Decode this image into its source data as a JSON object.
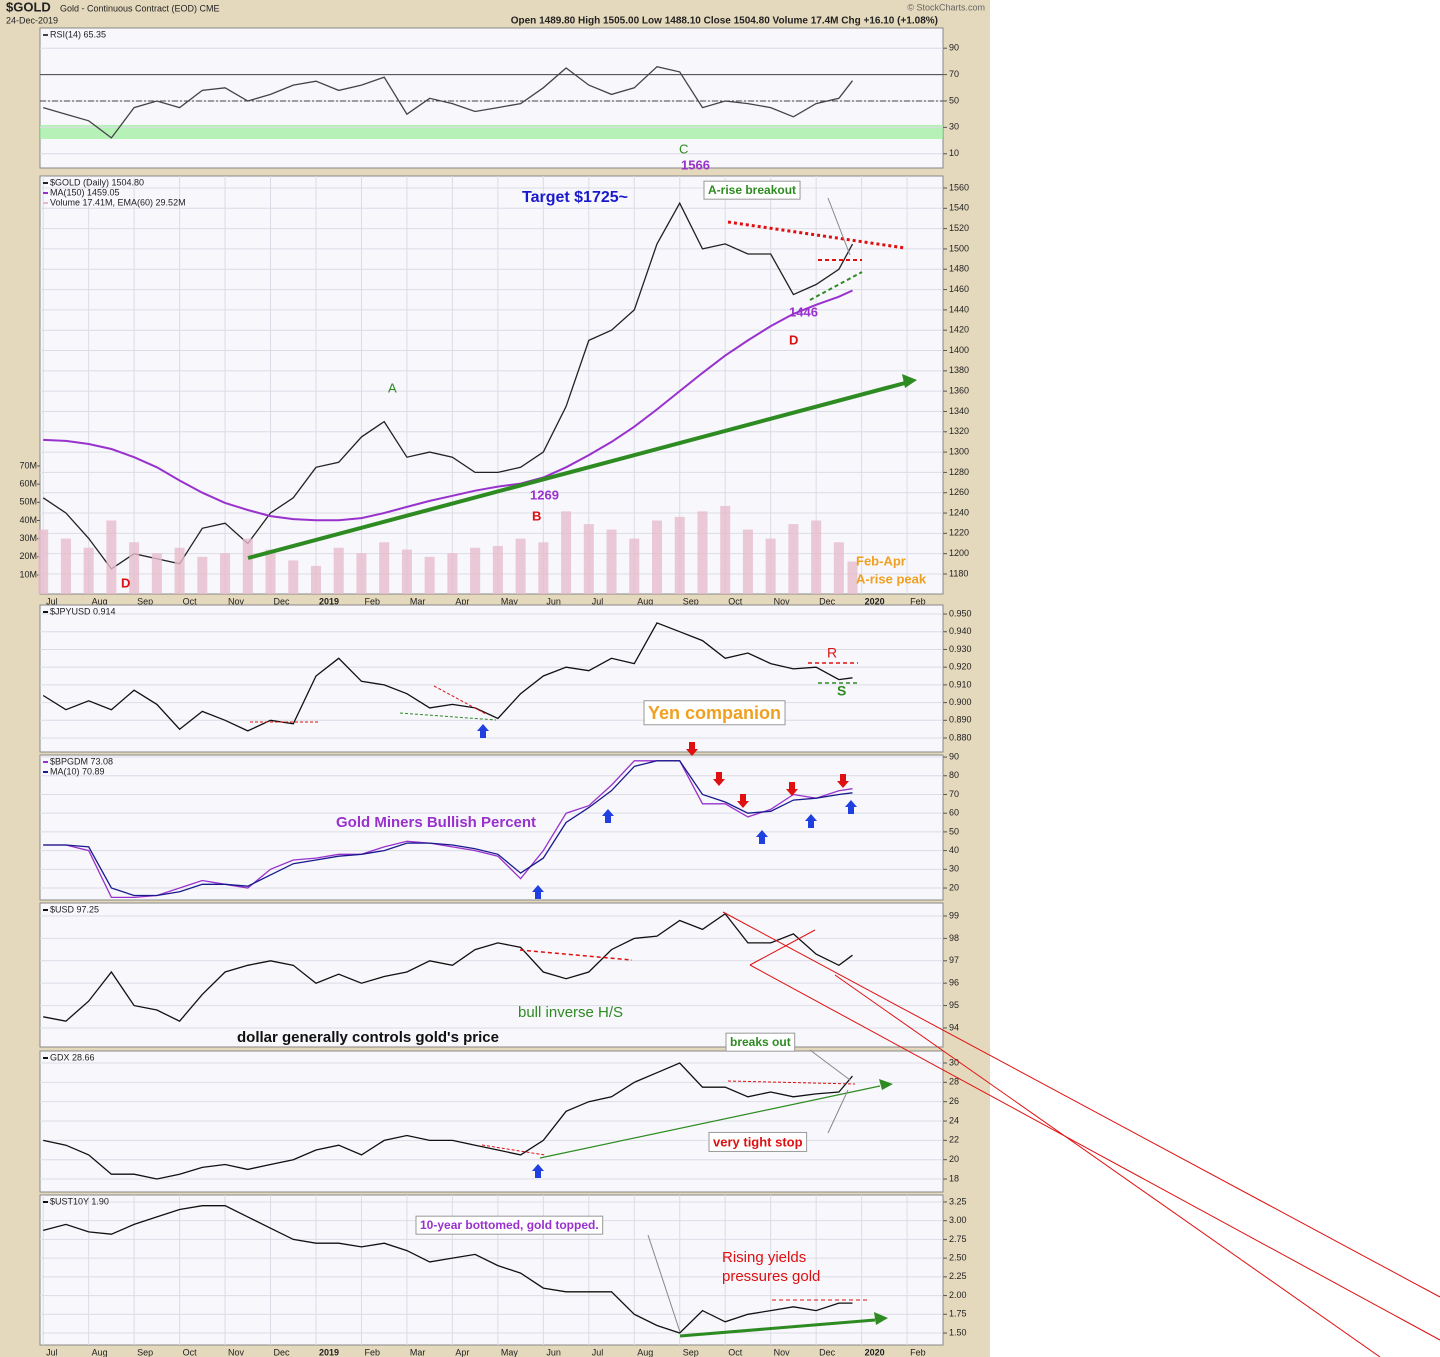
{
  "header": {
    "symbol": "$GOLD",
    "description": "Gold - Continuous Contract (EOD) CME",
    "date": "24-Dec-2019",
    "quote": "Open 1489.80  High 1505.00  Low 1488.10  Close 1504.80  Volume 17.4M  Chg +16.10 (+1.08%)",
    "credit": "© StockCharts.com"
  },
  "chart_data": [
    {
      "type": "line",
      "x": [
        0,
        0.5,
        1,
        1.5,
        2,
        2.5,
        3,
        3.5,
        4,
        4.5,
        5,
        5.5,
        6,
        6.5,
        7,
        7.5,
        8,
        8.5,
        9,
        9.5,
        10,
        10.5,
        11,
        11.5,
        12,
        12.5,
        13,
        13.5,
        14,
        14.5,
        15,
        15.5,
        16,
        16.5,
        17,
        17.5,
        17.8
      ],
      "xlim": [
        -0.07,
        19.79
      ],
      "ylim": [
        -0.8,
        105.3
      ],
      "yticks": [
        10,
        30,
        50,
        70,
        90
      ],
      "grid": true,
      "band": [
        21.2,
        31.8
      ],
      "ref_lines": [
        70,
        50
      ],
      "series": [
        {
          "name": "RSI(14) 65.35",
          "color": "#444444",
          "values": [
            45,
            40,
            35,
            22,
            45,
            50,
            45,
            58,
            60,
            50,
            55,
            62,
            65,
            58,
            62,
            68,
            40,
            52,
            48,
            42,
            45,
            48,
            60,
            75,
            62,
            55,
            60,
            76,
            72,
            45,
            50,
            48,
            45,
            38,
            48,
            52,
            65.35
          ]
        }
      ]
    },
    {
      "type": "line",
      "x": [
        0,
        0.5,
        1,
        1.5,
        2,
        2.5,
        3,
        3.5,
        4,
        4.5,
        5,
        5.5,
        6,
        6.5,
        7,
        7.5,
        8,
        8.5,
        9,
        9.5,
        10,
        10.5,
        11,
        11.5,
        12,
        12.5,
        13,
        13.5,
        14,
        14.5,
        15,
        15.5,
        16,
        16.5,
        17,
        17.5,
        17.8
      ],
      "xlim": [
        -0.07,
        19.79
      ],
      "ylim": [
        1160.3,
        1571.8
      ],
      "yticks": [
        1180,
        1200,
        1220,
        1240,
        1260,
        1280,
        1300,
        1320,
        1340,
        1360,
        1380,
        1400,
        1420,
        1440,
        1460,
        1480,
        1500,
        1520,
        1540,
        1560
      ],
      "y2lim": [
        -0.46,
        229.6
      ],
      "y2ticks": [
        {
          "value": 10,
          "label": "10M"
        },
        {
          "value": 20,
          "label": "20M"
        },
        {
          "value": 30,
          "label": "30M"
        },
        {
          "value": 40,
          "label": "40M"
        },
        {
          "value": 50,
          "label": "50M"
        },
        {
          "value": 60,
          "label": "60M"
        },
        {
          "value": 70,
          "label": "70M"
        }
      ],
      "xticks": [
        {
          "value": 0,
          "label": "Jul"
        },
        {
          "value": 1,
          "label": "Aug"
        },
        {
          "value": 2,
          "label": "Sep"
        },
        {
          "value": 3,
          "label": "Oct"
        },
        {
          "value": 4,
          "label": "Nov"
        },
        {
          "value": 5,
          "label": "Dec"
        },
        {
          "value": 6,
          "label": "2019"
        },
        {
          "value": 7,
          "label": "Feb"
        },
        {
          "value": 8,
          "label": "Mar"
        },
        {
          "value": 9,
          "label": "Apr"
        },
        {
          "value": 10,
          "label": "May"
        },
        {
          "value": 11,
          "label": "Jun"
        },
        {
          "value": 12,
          "label": "Jul"
        },
        {
          "value": 13,
          "label": "Aug"
        },
        {
          "value": 14,
          "label": "Sep"
        },
        {
          "value": 15,
          "label": "Oct"
        },
        {
          "value": 16,
          "label": "Nov"
        },
        {
          "value": 17,
          "label": "Dec"
        },
        {
          "value": 18,
          "label": "2020"
        },
        {
          "value": 19,
          "label": "Feb"
        }
      ],
      "grid": true,
      "series": [
        {
          "name": "$GOLD (Daily) 1504.80",
          "color": "#222222",
          "values": [
            1255,
            1240,
            1215,
            1185,
            1200,
            1195,
            1190,
            1225,
            1230,
            1210,
            1240,
            1255,
            1285,
            1290,
            1315,
            1330,
            1295,
            1300,
            1295,
            1280,
            1280,
            1285,
            1300,
            1345,
            1410,
            1420,
            1440,
            1505,
            1545,
            1500,
            1505,
            1495,
            1495,
            1455,
            1465,
            1480,
            1504.8
          ]
        },
        {
          "name": "MA(150) 1459.05",
          "color": "#9932cc",
          "values": [
            1312,
            1311,
            1308,
            1303,
            1295,
            1285,
            1272,
            1260,
            1250,
            1243,
            1237,
            1234,
            1233,
            1233,
            1235,
            1240,
            1246,
            1252,
            1257,
            1262,
            1266,
            1269,
            1275,
            1285,
            1297,
            1310,
            1325,
            1342,
            1360,
            1378,
            1395,
            1410,
            1424,
            1436,
            1445,
            1453,
            1459.05
          ]
        },
        {
          "name": "Volume 17.41M, EMA(60) 29.52M",
          "color": "#e6bccb",
          "axis": "y2",
          "values": [
            35,
            30,
            25,
            40,
            28,
            22,
            25,
            20,
            22,
            30,
            24,
            18,
            15,
            25,
            22,
            28,
            24,
            20,
            22,
            25,
            26,
            30,
            28,
            45,
            38,
            35,
            30,
            40,
            42,
            45,
            48,
            35,
            30,
            38,
            40,
            28,
            17.41
          ]
        }
      ],
      "annotations": [
        "Target $1725~",
        "A-rise breakout",
        "A",
        "1269",
        "B",
        "C",
        "1566",
        "1446",
        "D",
        "D",
        "Feb-Apr",
        "A-rise peak"
      ]
    },
    {
      "type": "line",
      "x": [
        0,
        0.5,
        1,
        1.5,
        2,
        2.5,
        3,
        3.5,
        4,
        4.5,
        5,
        5.5,
        6,
        6.5,
        7,
        7.5,
        8,
        8.5,
        9,
        9.5,
        10,
        10.5,
        11,
        11.5,
        12,
        12.5,
        13,
        13.5,
        14,
        14.5,
        15,
        15.5,
        16,
        16.5,
        17,
        17.5,
        17.8
      ],
      "xlim": [
        -0.07,
        19.79
      ],
      "ylim": [
        0.8721,
        0.9551
      ],
      "yticks": [
        {
          "value": 0.88,
          "label": "0.880"
        },
        {
          "value": 0.89,
          "label": "0.890"
        },
        {
          "value": 0.9,
          "label": "0.900"
        },
        {
          "value": 0.91,
          "label": "0.910"
        },
        {
          "value": 0.92,
          "label": "0.920"
        },
        {
          "value": 0.93,
          "label": "0.930"
        },
        {
          "value": 0.94,
          "label": "0.940"
        },
        {
          "value": 0.95,
          "label": "0.950"
        }
      ],
      "grid": true,
      "series": [
        {
          "name": "$JPYUSD 0.914",
          "color": "#111111",
          "values": [
            0.904,
            0.896,
            0.901,
            0.896,
            0.907,
            0.899,
            0.885,
            0.895,
            0.89,
            0.884,
            0.89,
            0.888,
            0.915,
            0.925,
            0.912,
            0.91,
            0.905,
            0.897,
            0.899,
            0.897,
            0.891,
            0.905,
            0.915,
            0.92,
            0.918,
            0.925,
            0.922,
            0.945,
            0.94,
            0.935,
            0.925,
            0.928,
            0.922,
            0.919,
            0.92,
            0.913,
            0.914
          ]
        }
      ],
      "annotations": [
        "R",
        "S",
        "Yen companion"
      ]
    },
    {
      "type": "line",
      "x": [
        0,
        0.5,
        1,
        1.5,
        2,
        2.5,
        3,
        3.5,
        4,
        4.5,
        5,
        5.5,
        6,
        6.5,
        7,
        7.5,
        8,
        8.5,
        9,
        9.5,
        10,
        10.5,
        11,
        11.5,
        12,
        12.5,
        13,
        13.5,
        14,
        14.5,
        15,
        15.5,
        16,
        16.5,
        17,
        17.5,
        17.8
      ],
      "xlim": [
        -0.07,
        19.79
      ],
      "ylim": [
        13.6,
        91.1
      ],
      "yticks": [
        20,
        30,
        40,
        50,
        60,
        70,
        80,
        90
      ],
      "grid": true,
      "series": [
        {
          "name": "$BPGDM 73.08",
          "color": "#9932cc",
          "values": [
            43,
            43,
            40,
            15,
            15,
            16,
            20,
            24,
            22,
            20,
            30,
            35,
            36,
            38,
            38,
            42,
            45,
            44,
            42,
            40,
            37,
            25,
            40,
            60,
            64,
            75,
            88,
            88,
            88,
            65,
            65,
            58,
            62,
            70,
            68,
            72,
            73.08
          ]
        },
        {
          "name": "MA(10) 70.89",
          "color": "#1a1a8c",
          "values": [
            43,
            43,
            42,
            20,
            16,
            16,
            18,
            22,
            22,
            21,
            27,
            33,
            35,
            37,
            38,
            40,
            44,
            44,
            43,
            41,
            38,
            28,
            36,
            55,
            63,
            72,
            85,
            88,
            88,
            70,
            66,
            60,
            61,
            67,
            68,
            70,
            70.89
          ]
        }
      ],
      "annotations": [
        "Gold Miners Bullish Percent"
      ]
    },
    {
      "type": "line",
      "x": [
        0,
        0.5,
        1,
        1.5,
        2,
        2.5,
        3,
        3.5,
        4,
        4.5,
        5,
        5.5,
        6,
        6.5,
        7,
        7.5,
        8,
        8.5,
        9,
        9.5,
        10,
        10.5,
        11,
        11.5,
        12,
        12.5,
        13,
        13.5,
        14,
        14.5,
        15,
        15.5,
        16,
        16.5,
        17,
        17.5,
        17.8
      ],
      "xlim": [
        -0.07,
        19.79
      ],
      "ylim": [
        93.15,
        99.58
      ],
      "yticks": [
        94,
        95,
        96,
        97,
        98,
        99
      ],
      "grid": true,
      "series": [
        {
          "name": "$USD 97.25",
          "color": "#111111",
          "values": [
            94.5,
            94.3,
            95.2,
            96.5,
            95.0,
            94.8,
            94.3,
            95.5,
            96.5,
            96.8,
            97.0,
            96.8,
            96.0,
            96.4,
            96.0,
            96.3,
            96.5,
            97.0,
            96.8,
            97.5,
            97.8,
            97.6,
            96.5,
            96.2,
            96.5,
            97.5,
            98.0,
            98.1,
            98.8,
            98.4,
            99.1,
            97.8,
            97.8,
            98.2,
            97.3,
            96.8,
            97.25
          ]
        }
      ],
      "annotations": [
        "bull inverse H/S",
        "dollar generally controls gold's price"
      ]
    },
    {
      "type": "line",
      "x": [
        0,
        0.5,
        1,
        1.5,
        2,
        2.5,
        3,
        3.5,
        4,
        4.5,
        5,
        5.5,
        6,
        6.5,
        7,
        7.5,
        8,
        8.5,
        9,
        9.5,
        10,
        10.5,
        11,
        11.5,
        12,
        12.5,
        13,
        13.5,
        14,
        14.5,
        15,
        15.5,
        16,
        16.5,
        17,
        17.5,
        17.8
      ],
      "xlim": [
        -0.07,
        19.79
      ],
      "ylim": [
        16.66,
        31.24
      ],
      "yticks": [
        18,
        20,
        22,
        24,
        26,
        28,
        30
      ],
      "grid": true,
      "series": [
        {
          "name": "GDX 28.66",
          "color": "#111111",
          "values": [
            22.0,
            21.5,
            20.5,
            18.5,
            18.5,
            18.0,
            18.5,
            19.2,
            19.5,
            19.0,
            19.5,
            20.0,
            21.0,
            21.5,
            20.5,
            22.0,
            22.5,
            22.0,
            22.0,
            21.5,
            21.0,
            20.5,
            22.0,
            25.0,
            26.0,
            26.5,
            28.0,
            29.0,
            30.0,
            27.5,
            27.5,
            26.5,
            27.0,
            26.5,
            26.8,
            27.0,
            28.66
          ]
        }
      ],
      "annotations": [
        "breaks out",
        "very tight stop"
      ]
    },
    {
      "type": "line",
      "x": [
        0,
        0.5,
        1,
        1.5,
        2,
        2.5,
        3,
        3.5,
        4,
        4.5,
        5,
        5.5,
        6,
        6.5,
        7,
        7.5,
        8,
        8.5,
        9,
        9.5,
        10,
        10.5,
        11,
        11.5,
        12,
        12.5,
        13,
        13.5,
        14,
        14.5,
        15,
        15.5,
        16,
        16.5,
        17,
        17.5,
        17.8
      ],
      "xlim": [
        -0.07,
        19.79
      ],
      "ylim": [
        1.34,
        3.343
      ],
      "yticks": [
        {
          "value": 1.5,
          "label": "1.50"
        },
        1.75,
        {
          "value": 2,
          "label": "2.00"
        },
        2.25,
        {
          "value": 2.5,
          "label": "2.50"
        },
        2.75,
        {
          "value": 3,
          "label": "3.00"
        },
        3.25
      ],
      "xticks": [
        {
          "value": 0,
          "label": "Jul"
        },
        {
          "value": 1,
          "label": "Aug"
        },
        {
          "value": 2,
          "label": "Sep"
        },
        {
          "value": 3,
          "label": "Oct"
        },
        {
          "value": 4,
          "label": "Nov"
        },
        {
          "value": 5,
          "label": "Dec"
        },
        {
          "value": 6,
          "label": "2019"
        },
        {
          "value": 7,
          "label": "Feb"
        },
        {
          "value": 8,
          "label": "Mar"
        },
        {
          "value": 9,
          "label": "Apr"
        },
        {
          "value": 10,
          "label": "May"
        },
        {
          "value": 11,
          "label": "Jun"
        },
        {
          "value": 12,
          "label": "Jul"
        },
        {
          "value": 13,
          "label": "Aug"
        },
        {
          "value": 14,
          "label": "Sep"
        },
        {
          "value": 15,
          "label": "Oct"
        },
        {
          "value": 16,
          "label": "Nov"
        },
        {
          "value": 17,
          "label": "Dec"
        },
        {
          "value": 18,
          "label": "2020"
        },
        {
          "value": 19,
          "label": "Feb"
        }
      ],
      "grid": true,
      "series": [
        {
          "name": "$UST10Y 1.90",
          "color": "#111111",
          "values": [
            2.87,
            2.95,
            2.85,
            2.82,
            2.95,
            3.05,
            3.15,
            3.2,
            3.2,
            3.05,
            2.9,
            2.75,
            2.7,
            2.7,
            2.65,
            2.7,
            2.6,
            2.45,
            2.5,
            2.55,
            2.4,
            2.3,
            2.1,
            2.05,
            2.05,
            2.05,
            1.75,
            1.6,
            1.5,
            1.8,
            1.65,
            1.75,
            1.8,
            1.85,
            1.8,
            1.9,
            1.9
          ]
        }
      ],
      "annotations": [
        "10-year bottomed, gold topped.",
        "Rising yields",
        "pressures gold"
      ]
    }
  ]
}
